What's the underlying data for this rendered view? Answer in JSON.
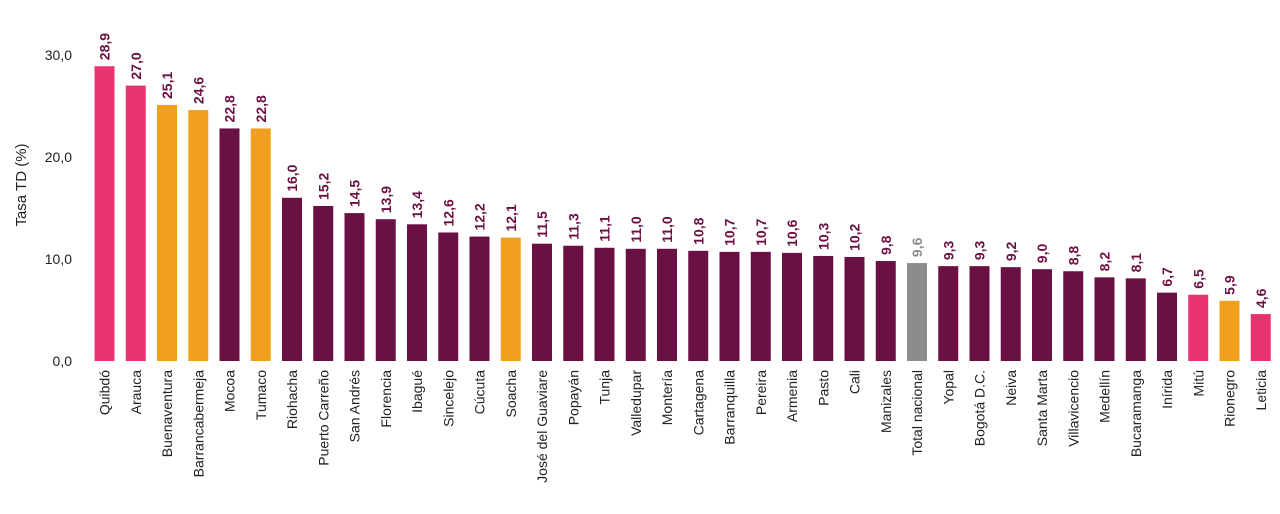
{
  "chart_data": {
    "type": "bar",
    "ylabel": "Tasa TD (%)",
    "xlabel": "",
    "title": "",
    "ylim": [
      0,
      30
    ],
    "yticks": [
      "0,0",
      "10,0",
      "20,0",
      "30,0"
    ],
    "grid": false,
    "legend": "none",
    "colors": {
      "pink": "#e8336f",
      "orange": "#f0a01e",
      "maroon": "#6b1042",
      "gray": "#8c8c8c",
      "label_default": "#6b1042",
      "label_gray": "#8c8c8c"
    },
    "categories": [
      "Quibdó",
      "Arauca",
      "Buenaventura",
      "Barrancabermeja",
      "Mocoa",
      "Tumaco",
      "Riohacha",
      "Puerto Carreño",
      "San Andrés",
      "Florencia",
      "Ibagué",
      "Sincelejo",
      "Cúcuta",
      "Soacha",
      "José del Guaviare",
      "Popayán",
      "Tunja",
      "Valledupar",
      "Montería",
      "Cartagena",
      "Barranquilla",
      "Pereira",
      "Armenia",
      "Pasto",
      "Cali",
      "Manizales",
      "Total nacional",
      "Yopal",
      "Bogotá D.C.",
      "Neiva",
      "Santa Marta",
      "Villavicencio",
      "Medellín",
      "Bucaramanga",
      "Inírida",
      "Mitú",
      "Rionegro",
      "Leticia"
    ],
    "values": [
      28.9,
      27.0,
      25.1,
      24.6,
      22.8,
      22.8,
      16.0,
      15.2,
      14.5,
      13.9,
      13.4,
      12.6,
      12.2,
      12.1,
      11.5,
      11.3,
      11.1,
      11.0,
      11.0,
      10.8,
      10.7,
      10.7,
      10.6,
      10.3,
      10.2,
      9.8,
      9.6,
      9.3,
      9.3,
      9.2,
      9.0,
      8.8,
      8.2,
      8.1,
      6.7,
      6.5,
      5.9,
      4.6
    ],
    "value_labels": [
      "28,9",
      "27,0",
      "25,1",
      "24,6",
      "22,8",
      "22,8",
      "16,0",
      "15,2",
      "14,5",
      "13,9",
      "13,4",
      "12,6",
      "12,2",
      "12,1",
      "11,5",
      "11,3",
      "11,1",
      "11,0",
      "11,0",
      "10,8",
      "10,7",
      "10,7",
      "10,6",
      "10,3",
      "10,2",
      "9,8",
      "9,6",
      "9,3",
      "9,3",
      "9,2",
      "9,0",
      "8,8",
      "8,2",
      "8,1",
      "6,7",
      "6,5",
      "5,9",
      "4,6"
    ],
    "bar_colors": [
      "pink",
      "pink",
      "orange",
      "orange",
      "maroon",
      "orange",
      "maroon",
      "maroon",
      "maroon",
      "maroon",
      "maroon",
      "maroon",
      "maroon",
      "orange",
      "maroon",
      "maroon",
      "maroon",
      "maroon",
      "maroon",
      "maroon",
      "maroon",
      "maroon",
      "maroon",
      "maroon",
      "maroon",
      "maroon",
      "gray",
      "maroon",
      "maroon",
      "maroon",
      "maroon",
      "maroon",
      "maroon",
      "maroon",
      "maroon",
      "pink",
      "orange",
      "pink"
    ]
  }
}
